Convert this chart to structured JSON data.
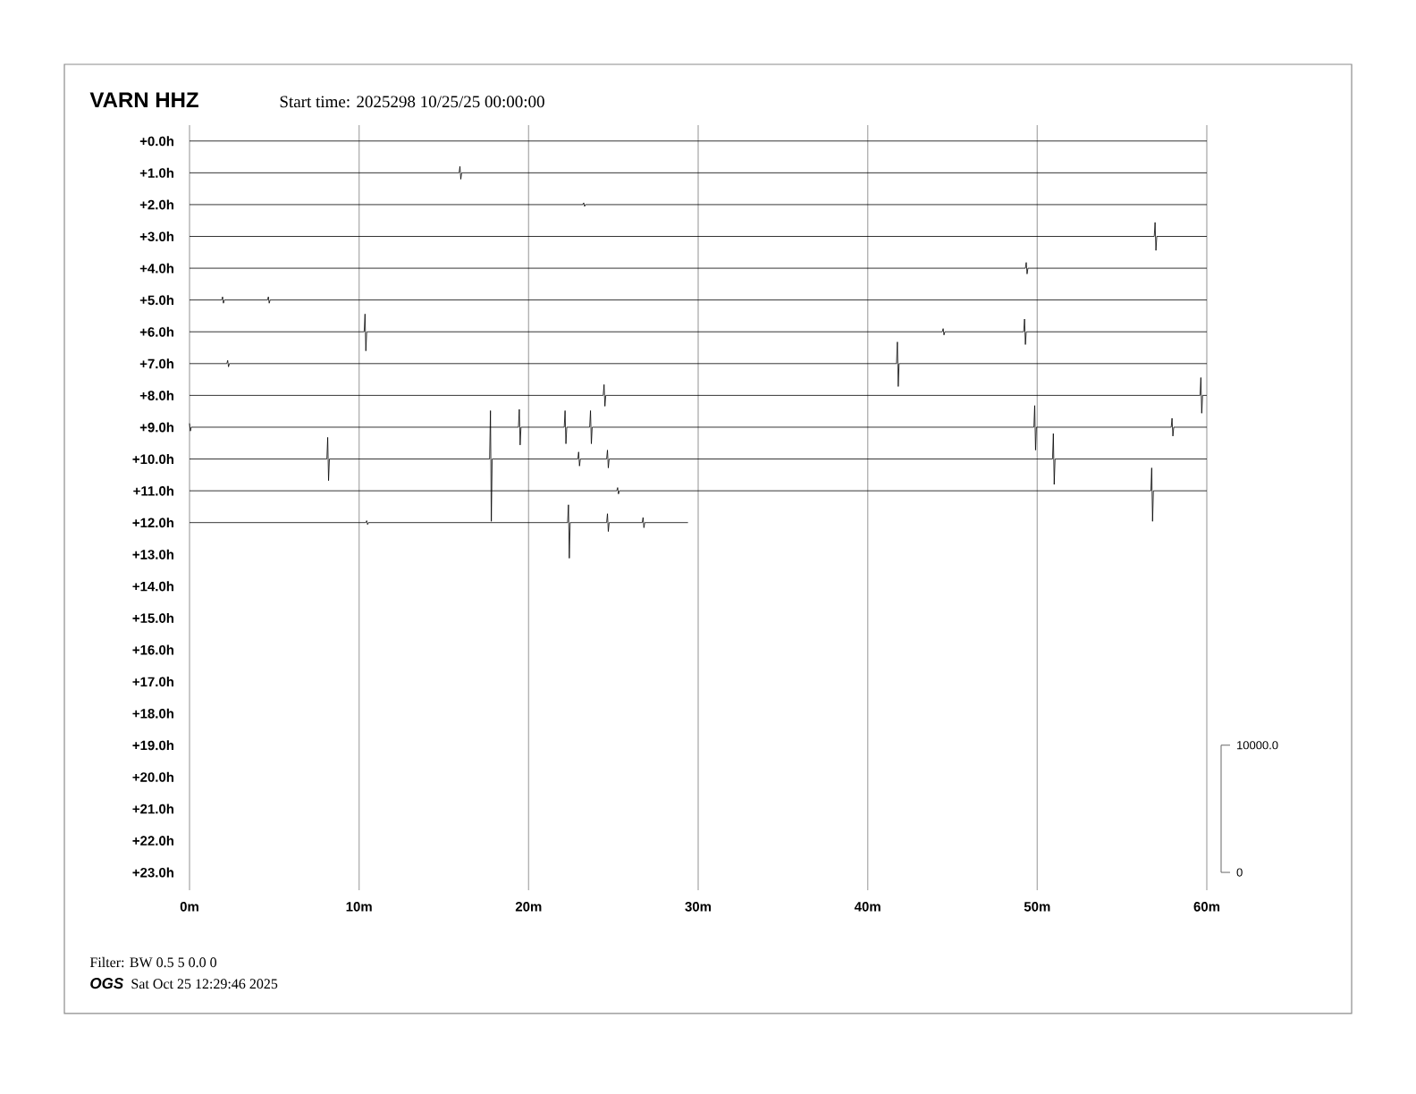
{
  "chart_data": {
    "type": "line",
    "title": "VARN HHZ",
    "subtitle": "Start time: 2025298 10/25/25 00:00:00",
    "annotations": [
      "Filter: BW 0.5 5 0.0 0",
      "OGS",
      "Sat Oct 25 12:29:46 2025"
    ],
    "xlim": [
      0,
      60
    ],
    "xticks": [
      {
        "value": 0,
        "label": "0m"
      },
      {
        "value": 10,
        "label": "10m"
      },
      {
        "value": 20,
        "label": "20m"
      },
      {
        "value": 30,
        "label": "30m"
      },
      {
        "value": 40,
        "label": "40m"
      },
      {
        "value": 50,
        "label": "50m"
      },
      {
        "value": 60,
        "label": "60m"
      }
    ],
    "ylim": [
      23.56,
      -0.5
    ],
    "yticks": [
      {
        "value": 0,
        "label": "+0.0h"
      },
      {
        "value": 1,
        "label": "+1.0h"
      },
      {
        "value": 2,
        "label": "+2.0h"
      },
      {
        "value": 3,
        "label": "+3.0h"
      },
      {
        "value": 4,
        "label": "+4.0h"
      },
      {
        "value": 5,
        "label": "+5.0h"
      },
      {
        "value": 6,
        "label": "+6.0h"
      },
      {
        "value": 7,
        "label": "+7.0h"
      },
      {
        "value": 8,
        "label": "+8.0h"
      },
      {
        "value": 9,
        "label": "+9.0h"
      },
      {
        "value": 10,
        "label": "+10.0h"
      },
      {
        "value": 11,
        "label": "+11.0h"
      },
      {
        "value": 12,
        "label": "+12.0h"
      },
      {
        "value": 13,
        "label": "+13.0h"
      },
      {
        "value": 14,
        "label": "+14.0h"
      },
      {
        "value": 15,
        "label": "+15.0h"
      },
      {
        "value": 16,
        "label": "+16.0h"
      },
      {
        "value": 17,
        "label": "+17.0h"
      },
      {
        "value": 18,
        "label": "+18.0h"
      },
      {
        "value": 19,
        "label": "+19.0h"
      },
      {
        "value": 20,
        "label": "+20.0h"
      },
      {
        "value": 21,
        "label": "+21.0h"
      },
      {
        "value": 22,
        "label": "+22.0h"
      },
      {
        "value": 23,
        "label": "+23.0h"
      }
    ],
    "y2lim": [
      -1400,
      58750
    ],
    "y2ticks": [
      0,
      {
        "value": 10000,
        "label": "10000.0"
      }
    ],
    "grid": "x",
    "line_style": "solid",
    "series": [
      {
        "color": "#000000",
        "axis": "y2",
        "x": [
          0,
          60
        ],
        "values": [
          57500,
          57500
        ]
      },
      {
        "color": "#000000",
        "axis": "y2",
        "x": [
          0,
          15.9,
          15.95,
          16.0,
          16.05,
          60
        ],
        "values": [
          55000,
          55000,
          55500,
          54500,
          55000,
          55000
        ]
      },
      {
        "color": "#000000",
        "axis": "y2",
        "x": [
          0,
          23.2,
          23.25,
          23.3,
          23.35,
          60
        ],
        "values": [
          52500,
          52500,
          52640,
          52360,
          52500,
          52500
        ]
      },
      {
        "color": "#000000",
        "axis": "y2",
        "x": [
          0,
          56.9,
          56.95,
          57,
          57.05,
          60
        ],
        "values": [
          50000,
          50000,
          51100,
          48900,
          50000,
          50000
        ]
      },
      {
        "color": "#000000",
        "axis": "y2",
        "x": [
          0,
          49.3,
          49.35,
          49.4,
          49.45,
          60
        ],
        "values": [
          47500,
          47500,
          47950,
          47050,
          47500,
          47500
        ]
      },
      {
        "color": "#000000",
        "axis": "y2",
        "x": [
          0,
          1.9,
          1.95,
          2,
          2.05,
          4.6,
          4.65,
          4.7,
          4.75,
          60
        ],
        "values": [
          45000,
          45000,
          45250,
          44750,
          45000,
          45000,
          45250,
          44750,
          45000,
          45000
        ]
      },
      {
        "color": "#000000",
        "axis": "y2",
        "x": [
          0,
          10.3,
          10.35,
          10.4,
          10.45,
          44.4,
          44.45,
          44.5,
          44.55,
          49.2,
          49.25,
          49.3,
          49.35,
          60
        ],
        "values": [
          42500,
          42500,
          43900,
          41000,
          42500,
          42500,
          42750,
          42250,
          42500,
          42500,
          43500,
          41500,
          42500,
          42500
        ]
      },
      {
        "color": "#000000",
        "axis": "y2",
        "x": [
          0,
          2.2,
          2.25,
          2.3,
          2.35,
          41.7,
          41.75,
          41.8,
          41.85,
          60
        ],
        "values": [
          40000,
          40000,
          40250,
          39750,
          40000,
          40000,
          41700,
          38200,
          40000,
          40000
        ]
      },
      {
        "color": "#000000",
        "axis": "y2",
        "x": [
          0,
          24.4,
          24.45,
          24.5,
          24.55,
          59.6,
          59.65,
          59.7,
          59.75,
          60
        ],
        "values": [
          37500,
          37500,
          38350,
          36650,
          37500,
          37500,
          38900,
          36100,
          37500,
          37500
        ]
      },
      {
        "color": "#000000",
        "axis": "y2",
        "x": [
          0,
          0.05,
          0.1,
          19.4,
          19.45,
          19.5,
          19.55,
          22.1,
          22.15,
          22.2,
          22.25,
          23.6,
          23.65,
          23.7,
          23.75,
          49.8,
          49.85,
          49.9,
          49.95,
          57.9,
          57.95,
          58,
          58.05,
          60
        ],
        "values": [
          35300,
          34700,
          35000,
          35000,
          36400,
          33600,
          35000,
          35000,
          36300,
          33700,
          35000,
          35000,
          36300,
          33700,
          35000,
          35000,
          36700,
          33200,
          35000,
          35000,
          35700,
          34300,
          35000,
          35000
        ]
      },
      {
        "color": "#000000",
        "axis": "y2",
        "x": [
          0,
          8.1,
          8.15,
          8.2,
          8.25,
          17.7,
          17.75,
          17.8,
          17.85,
          22.9,
          22.95,
          23,
          23.05,
          24.6,
          24.65,
          24.7,
          24.75,
          50.9,
          50.95,
          51,
          51.05,
          60
        ],
        "values": [
          32500,
          32500,
          34200,
          30800,
          32500,
          32500,
          36300,
          27600,
          32500,
          32500,
          33050,
          31950,
          32500,
          32500,
          33200,
          31800,
          32500,
          32500,
          34500,
          30500,
          32500,
          32500
        ]
      },
      {
        "color": "#000000",
        "axis": "y2",
        "x": [
          0,
          25.2,
          25.25,
          25.3,
          25.35,
          56.7,
          56.75,
          56.8,
          56.85,
          60
        ],
        "values": [
          30000,
          30000,
          30250,
          29750,
          30000,
          30000,
          31800,
          27600,
          30000,
          30000
        ]
      },
      {
        "color": "#000000",
        "axis": "y2",
        "x": [
          0,
          10.4,
          10.45,
          10.5,
          10.55,
          22.3,
          22.35,
          22.4,
          22.45,
          24.6,
          24.65,
          24.7,
          24.75,
          26.7,
          26.75,
          26.8,
          26.85,
          29.4
        ],
        "values": [
          27500,
          27500,
          27650,
          27350,
          27500,
          27500,
          28900,
          24700,
          27500,
          27500,
          28200,
          26800,
          27500,
          27500,
          27900,
          27100,
          27500,
          27500
        ]
      }
    ]
  }
}
